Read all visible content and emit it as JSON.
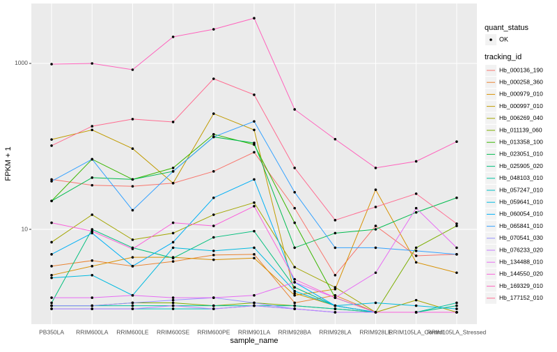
{
  "chart_data": {
    "type": "line",
    "x_label": "sample_name",
    "y_label": "FPKM + 1",
    "categories": [
      "PB350LA",
      "RRIM600LA",
      "RRIM600LE",
      "RRIM600SE",
      "RRIM600PE",
      "RRIM901LA",
      "RRIM928BA",
      "RRIM928LA",
      "RRIM928LE",
      "RRIM105LA_Control",
      "RRIM105LA_Stressed"
    ],
    "ylim": [
      0.72,
      5280
    ],
    "yticks": [
      10,
      1000
    ],
    "log_y": true,
    "grid": true,
    "legend_status_title": "quant_status",
    "legend_status_entry": "OK",
    "legend_title": "tracking_id",
    "legend_position": "right",
    "series": [
      {
        "name": "Hb_000136_190",
        "color": "#F8766D",
        "values": [
          40,
          34,
          33,
          36,
          50,
          85,
          18,
          2.8,
          11,
          4.8,
          5
        ]
      },
      {
        "name": "Hb_000258_360",
        "color": "#EA8331",
        "values": [
          3.6,
          4.2,
          3.6,
          4.1,
          4.9,
          5,
          1.3,
          1.6,
          1,
          1,
          1
        ]
      },
      {
        "name": "Hb_000979_010",
        "color": "#D89000",
        "values": [
          2.8,
          3.6,
          4.6,
          4.6,
          4.3,
          4.5,
          1.6,
          1.9,
          30,
          4,
          3
        ]
      },
      {
        "name": "Hb_000997_010",
        "color": "#C09B00",
        "values": [
          121,
          158,
          94,
          36,
          248,
          158,
          1.7,
          1.2,
          1,
          1,
          1
        ]
      },
      {
        "name": "Hb_006269_040",
        "color": "#A3A500",
        "values": [
          7,
          15,
          7.5,
          9,
          15,
          21,
          3.5,
          2,
          1,
          1.4,
          1
        ]
      },
      {
        "name": "Hb_011139_060",
        "color": "#7CAE00",
        "values": [
          1.2,
          1.2,
          1.3,
          1.3,
          1.2,
          1.3,
          1.2,
          1.1,
          1,
          6,
          11
        ]
      },
      {
        "name": "Hb_013358_100",
        "color": "#39B600",
        "values": [
          22,
          70,
          40,
          55,
          140,
          105,
          12,
          1.5,
          1,
          1,
          1
        ]
      },
      {
        "name": "Hb_023051_010",
        "color": "#00BB4E",
        "values": [
          22,
          42,
          40,
          50,
          130,
          110,
          6,
          9,
          10,
          16,
          24
        ]
      },
      {
        "name": "Hb_025905_020",
        "color": "#00BF7D",
        "values": [
          1.3,
          10,
          6,
          4.5,
          8,
          9.5,
          2,
          1.2,
          1,
          1,
          1.2
        ]
      },
      {
        "name": "Hb_048103_010",
        "color": "#00C1A3",
        "values": [
          1.2,
          1.2,
          1.2,
          1.2,
          1.2,
          1.2,
          1.2,
          1.1,
          1,
          1,
          1.3
        ]
      },
      {
        "name": "Hb_057247_010",
        "color": "#00BFC4",
        "values": [
          1.1,
          1.1,
          1.1,
          1.1,
          1.1,
          1.2,
          1.1,
          1,
          1,
          1,
          1
        ]
      },
      {
        "name": "Hb_059641_010",
        "color": "#00BAE0",
        "values": [
          2.6,
          2.8,
          1.6,
          6,
          5.5,
          6,
          1.8,
          1.2,
          1.3,
          1.2,
          1.1
        ]
      },
      {
        "name": "Hb_060054_010",
        "color": "#00B0F6",
        "values": [
          5,
          9,
          3.6,
          7,
          24,
          40,
          2.3,
          1.2,
          1,
          1,
          1
        ]
      },
      {
        "name": "Hb_065841_010",
        "color": "#35A2FF",
        "values": [
          38,
          70,
          17,
          50,
          130,
          200,
          28,
          6,
          6,
          5.5,
          5
        ]
      },
      {
        "name": "Hb_070541_030",
        "color": "#9590FF",
        "values": [
          1.2,
          1.2,
          1.3,
          1.4,
          1.5,
          1.3,
          1.1,
          1,
          1,
          1,
          1
        ]
      },
      {
        "name": "Hb_076233_020",
        "color": "#C77CFF",
        "values": [
          1.1,
          1.1,
          1.1,
          1.2,
          1.1,
          1.2,
          1.1,
          1,
          1,
          1,
          1
        ]
      },
      {
        "name": "Hb_134488_010",
        "color": "#E76BF3",
        "values": [
          1.5,
          1.5,
          1.6,
          1.5,
          1.5,
          1.6,
          2.3,
          1.5,
          3,
          18,
          6
        ]
      },
      {
        "name": "Hb_144550_020",
        "color": "#FA62DB",
        "values": [
          12,
          9.5,
          5.8,
          12,
          11,
          19,
          2.5,
          1.5,
          1,
          1,
          1
        ]
      },
      {
        "name": "Hb_169329_010",
        "color": "#FF62BC",
        "values": [
          980,
          1000,
          840,
          2090,
          2580,
          3510,
          279,
          122,
          55,
          66,
          114
        ]
      },
      {
        "name": "Hb_177152_010",
        "color": "#FF6C91",
        "values": [
          102,
          175,
          213,
          197,
          653,
          419,
          55,
          12.9,
          18.6,
          26.9,
          11.7
        ]
      }
    ]
  }
}
